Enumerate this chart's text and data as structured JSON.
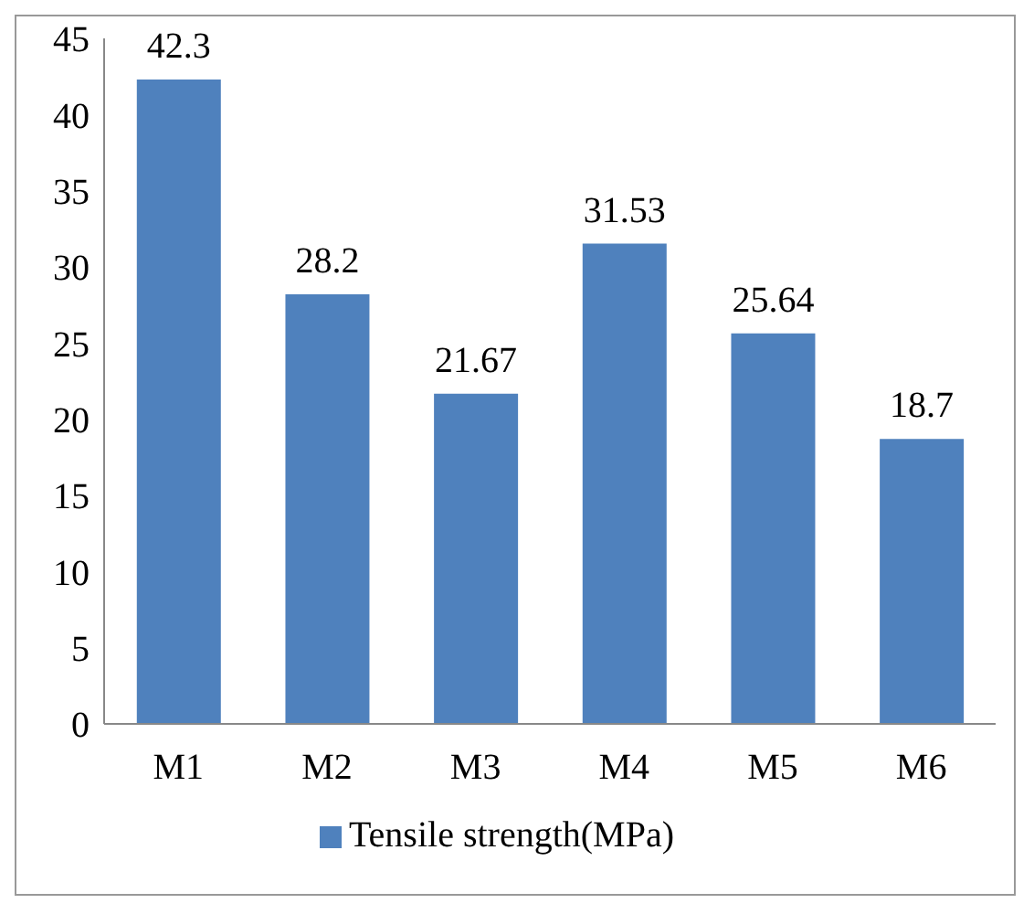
{
  "chart_data": {
    "type": "bar",
    "categories": [
      "M1",
      "M2",
      "M3",
      "M4",
      "M5",
      "M6"
    ],
    "series": [
      {
        "name": "Tensile strength(MPa)",
        "color": "#4f81bd",
        "values": [
          42.3,
          28.2,
          21.67,
          31.53,
          25.64,
          18.7
        ]
      }
    ],
    "ylim": [
      0,
      45
    ],
    "yticks": [
      0,
      5,
      10,
      15,
      20,
      25,
      30,
      35,
      40,
      45
    ],
    "data_labels": true,
    "legend": "bottom",
    "grid": false
  }
}
